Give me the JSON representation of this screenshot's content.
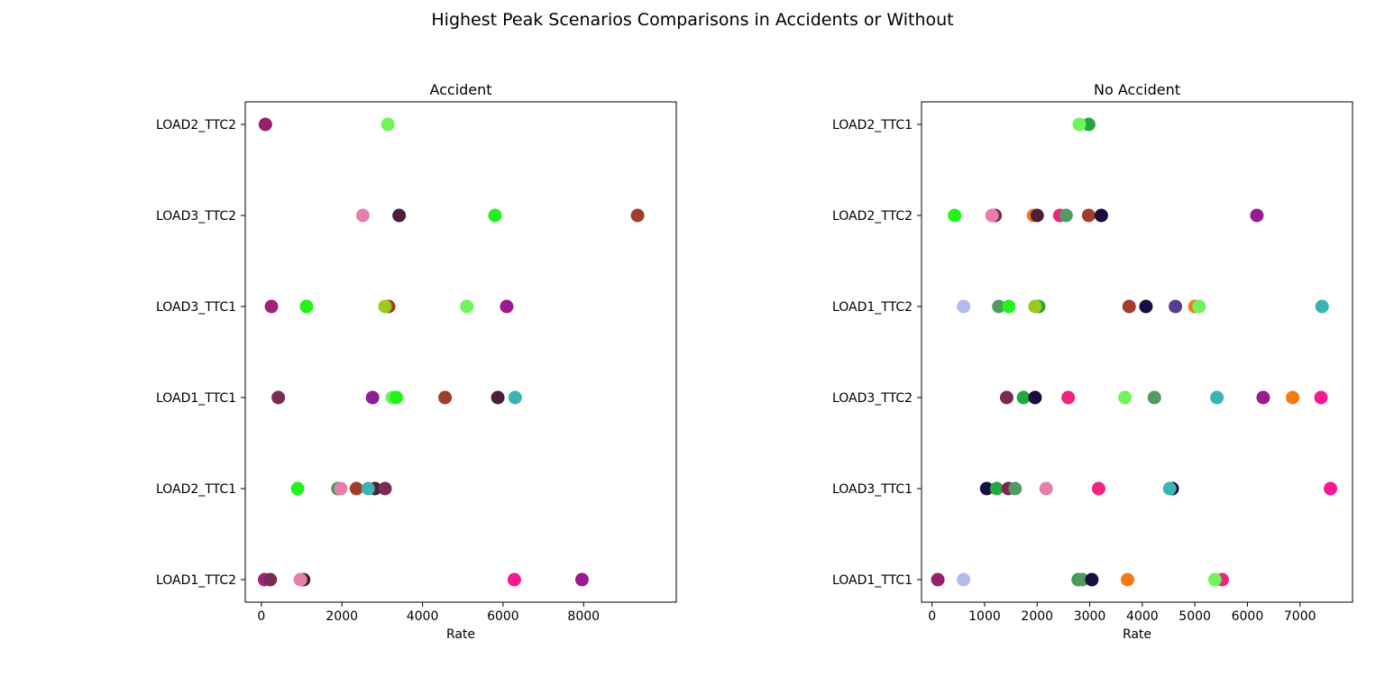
{
  "figure_title": "Highest Peak Scenarios Comparisons in Accidents or Without",
  "chart_data": [
    {
      "type": "scatter",
      "title": "Accident",
      "xlabel": "Rate",
      "ylabel": "",
      "xlim": [
        -400,
        10300
      ],
      "xticks": [
        0,
        2000,
        4000,
        6000,
        8000
      ],
      "grid": false,
      "categories": [
        "LOAD1_TTC2",
        "LOAD2_TTC1",
        "LOAD1_TTC1",
        "LOAD3_TTC1",
        "LOAD3_TTC2",
        "LOAD2_TTC2"
      ],
      "points": [
        {
          "y": "LOAD2_TTC2",
          "x": 100,
          "color": "#96206a"
        },
        {
          "y": "LOAD2_TTC2",
          "x": 3140,
          "color": "#6ff459"
        },
        {
          "y": "LOAD3_TTC2",
          "x": 2520,
          "color": "#e57fab"
        },
        {
          "y": "LOAD3_TTC2",
          "x": 3420,
          "color": "#4b1f37"
        },
        {
          "y": "LOAD3_TTC2",
          "x": 5800,
          "color": "#22f31b"
        },
        {
          "y": "LOAD3_TTC2",
          "x": 9340,
          "color": "#a13d2d"
        },
        {
          "y": "LOAD3_TTC1",
          "x": 250,
          "color": "#a0207a"
        },
        {
          "y": "LOAD3_TTC1",
          "x": 1120,
          "color": "#22f31b"
        },
        {
          "y": "LOAD3_TTC1",
          "x": 3160,
          "color": "#a13d2d"
        },
        {
          "y": "LOAD3_TTC1",
          "x": 3070,
          "color": "#9bc91c"
        },
        {
          "y": "LOAD3_TTC1",
          "x": 5100,
          "color": "#6ff459"
        },
        {
          "y": "LOAD3_TTC1",
          "x": 6090,
          "color": "#9a1b8e"
        },
        {
          "y": "LOAD1_TTC1",
          "x": 420,
          "color": "#7b2a52"
        },
        {
          "y": "LOAD1_TTC1",
          "x": 2760,
          "color": "#8e1d94"
        },
        {
          "y": "LOAD1_TTC1",
          "x": 3250,
          "color": "#6ff459"
        },
        {
          "y": "LOAD1_TTC1",
          "x": 3350,
          "color": "#22f31b"
        },
        {
          "y": "LOAD1_TTC1",
          "x": 4560,
          "color": "#a13d2d"
        },
        {
          "y": "LOAD1_TTC1",
          "x": 5870,
          "color": "#4b1f37"
        },
        {
          "y": "LOAD1_TTC1",
          "x": 6300,
          "color": "#3cb3b5"
        },
        {
          "y": "LOAD2_TTC1",
          "x": 900,
          "color": "#22f31b"
        },
        {
          "y": "LOAD2_TTC1",
          "x": 1900,
          "color": "#3f9a55"
        },
        {
          "y": "LOAD2_TTC1",
          "x": 1970,
          "color": "#e57fab"
        },
        {
          "y": "LOAD2_TTC1",
          "x": 2360,
          "color": "#a13d2d"
        },
        {
          "y": "LOAD2_TTC1",
          "x": 2820,
          "color": "#4b1f37"
        },
        {
          "y": "LOAD2_TTC1",
          "x": 2650,
          "color": "#3cb3b5"
        },
        {
          "y": "LOAD2_TTC1",
          "x": 3070,
          "color": "#7b2a52"
        },
        {
          "y": "LOAD1_TTC2",
          "x": 80,
          "color": "#a0207a"
        },
        {
          "y": "LOAD1_TTC2",
          "x": 220,
          "color": "#7b2a52"
        },
        {
          "y": "LOAD1_TTC2",
          "x": 1050,
          "color": "#4b1f37"
        },
        {
          "y": "LOAD1_TTC2",
          "x": 970,
          "color": "#e57fab"
        },
        {
          "y": "LOAD1_TTC2",
          "x": 6280,
          "color": "#f7198e"
        },
        {
          "y": "LOAD1_TTC2",
          "x": 7960,
          "color": "#9a1b8e"
        }
      ]
    },
    {
      "type": "scatter",
      "title": "No Accident",
      "xlabel": "Rate",
      "ylabel": "",
      "xlim": [
        -200,
        8000
      ],
      "xticks": [
        0,
        1000,
        2000,
        3000,
        4000,
        5000,
        6000,
        7000
      ],
      "grid": false,
      "categories": [
        "LOAD1_TTC1",
        "LOAD3_TTC1",
        "LOAD3_TTC2",
        "LOAD1_TTC2",
        "LOAD2_TTC2",
        "LOAD2_TTC1"
      ],
      "points": [
        {
          "y": "LOAD2_TTC1",
          "x": 2980,
          "color": "#23a840"
        },
        {
          "y": "LOAD2_TTC1",
          "x": 2800,
          "color": "#6ff459"
        },
        {
          "y": "LOAD2_TTC2",
          "x": 430,
          "color": "#22f31b"
        },
        {
          "y": "LOAD2_TTC2",
          "x": 1200,
          "color": "#7b2a52"
        },
        {
          "y": "LOAD2_TTC2",
          "x": 1140,
          "color": "#e57fab"
        },
        {
          "y": "LOAD2_TTC2",
          "x": 1930,
          "color": "#f77b15"
        },
        {
          "y": "LOAD2_TTC2",
          "x": 2000,
          "color": "#4b1f37"
        },
        {
          "y": "LOAD2_TTC2",
          "x": 2430,
          "color": "#f0247a"
        },
        {
          "y": "LOAD2_TTC2",
          "x": 2550,
          "color": "#519a61"
        },
        {
          "y": "LOAD2_TTC2",
          "x": 2980,
          "color": "#a13d2d"
        },
        {
          "y": "LOAD2_TTC2",
          "x": 3220,
          "color": "#1a0e41"
        },
        {
          "y": "LOAD2_TTC2",
          "x": 6180,
          "color": "#9a1b8e"
        },
        {
          "y": "LOAD1_TTC2",
          "x": 600,
          "color": "#b5b9eb"
        },
        {
          "y": "LOAD1_TTC2",
          "x": 1270,
          "color": "#519a61"
        },
        {
          "y": "LOAD1_TTC2",
          "x": 1460,
          "color": "#22f31b"
        },
        {
          "y": "LOAD1_TTC2",
          "x": 2030,
          "color": "#23a840"
        },
        {
          "y": "LOAD1_TTC2",
          "x": 1960,
          "color": "#9bc91c"
        },
        {
          "y": "LOAD1_TTC2",
          "x": 3750,
          "color": "#a13d2d"
        },
        {
          "y": "LOAD1_TTC2",
          "x": 4070,
          "color": "#1a0e41"
        },
        {
          "y": "LOAD1_TTC2",
          "x": 4630,
          "color": "#5b3a91"
        },
        {
          "y": "LOAD1_TTC2",
          "x": 5000,
          "color": "#f77b15"
        },
        {
          "y": "LOAD1_TTC2",
          "x": 5080,
          "color": "#6ff459"
        },
        {
          "y": "LOAD1_TTC2",
          "x": 7420,
          "color": "#3cb3b5"
        },
        {
          "y": "LOAD3_TTC2",
          "x": 1420,
          "color": "#7b2a52"
        },
        {
          "y": "LOAD3_TTC2",
          "x": 1740,
          "color": "#23a840"
        },
        {
          "y": "LOAD3_TTC2",
          "x": 1960,
          "color": "#1a0e41"
        },
        {
          "y": "LOAD3_TTC2",
          "x": 2590,
          "color": "#f0247a"
        },
        {
          "y": "LOAD3_TTC2",
          "x": 3670,
          "color": "#6ff459"
        },
        {
          "y": "LOAD3_TTC2",
          "x": 4230,
          "color": "#519a61"
        },
        {
          "y": "LOAD3_TTC2",
          "x": 5420,
          "color": "#3cb3b5"
        },
        {
          "y": "LOAD3_TTC2",
          "x": 6300,
          "color": "#9a1b8e"
        },
        {
          "y": "LOAD3_TTC2",
          "x": 6860,
          "color": "#f77b15"
        },
        {
          "y": "LOAD3_TTC2",
          "x": 7400,
          "color": "#f7198e"
        },
        {
          "y": "LOAD3_TTC1",
          "x": 1040,
          "color": "#1a0e41"
        },
        {
          "y": "LOAD3_TTC1",
          "x": 1230,
          "color": "#23a840"
        },
        {
          "y": "LOAD3_TTC1",
          "x": 1450,
          "color": "#7b2a52"
        },
        {
          "y": "LOAD3_TTC1",
          "x": 1580,
          "color": "#519a61"
        },
        {
          "y": "LOAD3_TTC1",
          "x": 2170,
          "color": "#e57fab"
        },
        {
          "y": "LOAD3_TTC1",
          "x": 3170,
          "color": "#f0247a"
        },
        {
          "y": "LOAD3_TTC1",
          "x": 4570,
          "color": "#1a0e41"
        },
        {
          "y": "LOAD3_TTC1",
          "x": 4520,
          "color": "#3cb3b5"
        },
        {
          "y": "LOAD3_TTC1",
          "x": 7580,
          "color": "#f7198e"
        },
        {
          "y": "LOAD1_TTC1",
          "x": 110,
          "color": "#96206a"
        },
        {
          "y": "LOAD1_TTC1",
          "x": 600,
          "color": "#b5b9eb"
        },
        {
          "y": "LOAD1_TTC1",
          "x": 2780,
          "color": "#3f9a55"
        },
        {
          "y": "LOAD1_TTC1",
          "x": 2860,
          "color": "#519a61"
        },
        {
          "y": "LOAD1_TTC1",
          "x": 3040,
          "color": "#1a0e41"
        },
        {
          "y": "LOAD1_TTC1",
          "x": 3720,
          "color": "#f77b15"
        },
        {
          "y": "LOAD1_TTC1",
          "x": 5520,
          "color": "#f0247a"
        },
        {
          "y": "LOAD1_TTC1",
          "x": 5380,
          "color": "#6ff459"
        }
      ]
    }
  ]
}
